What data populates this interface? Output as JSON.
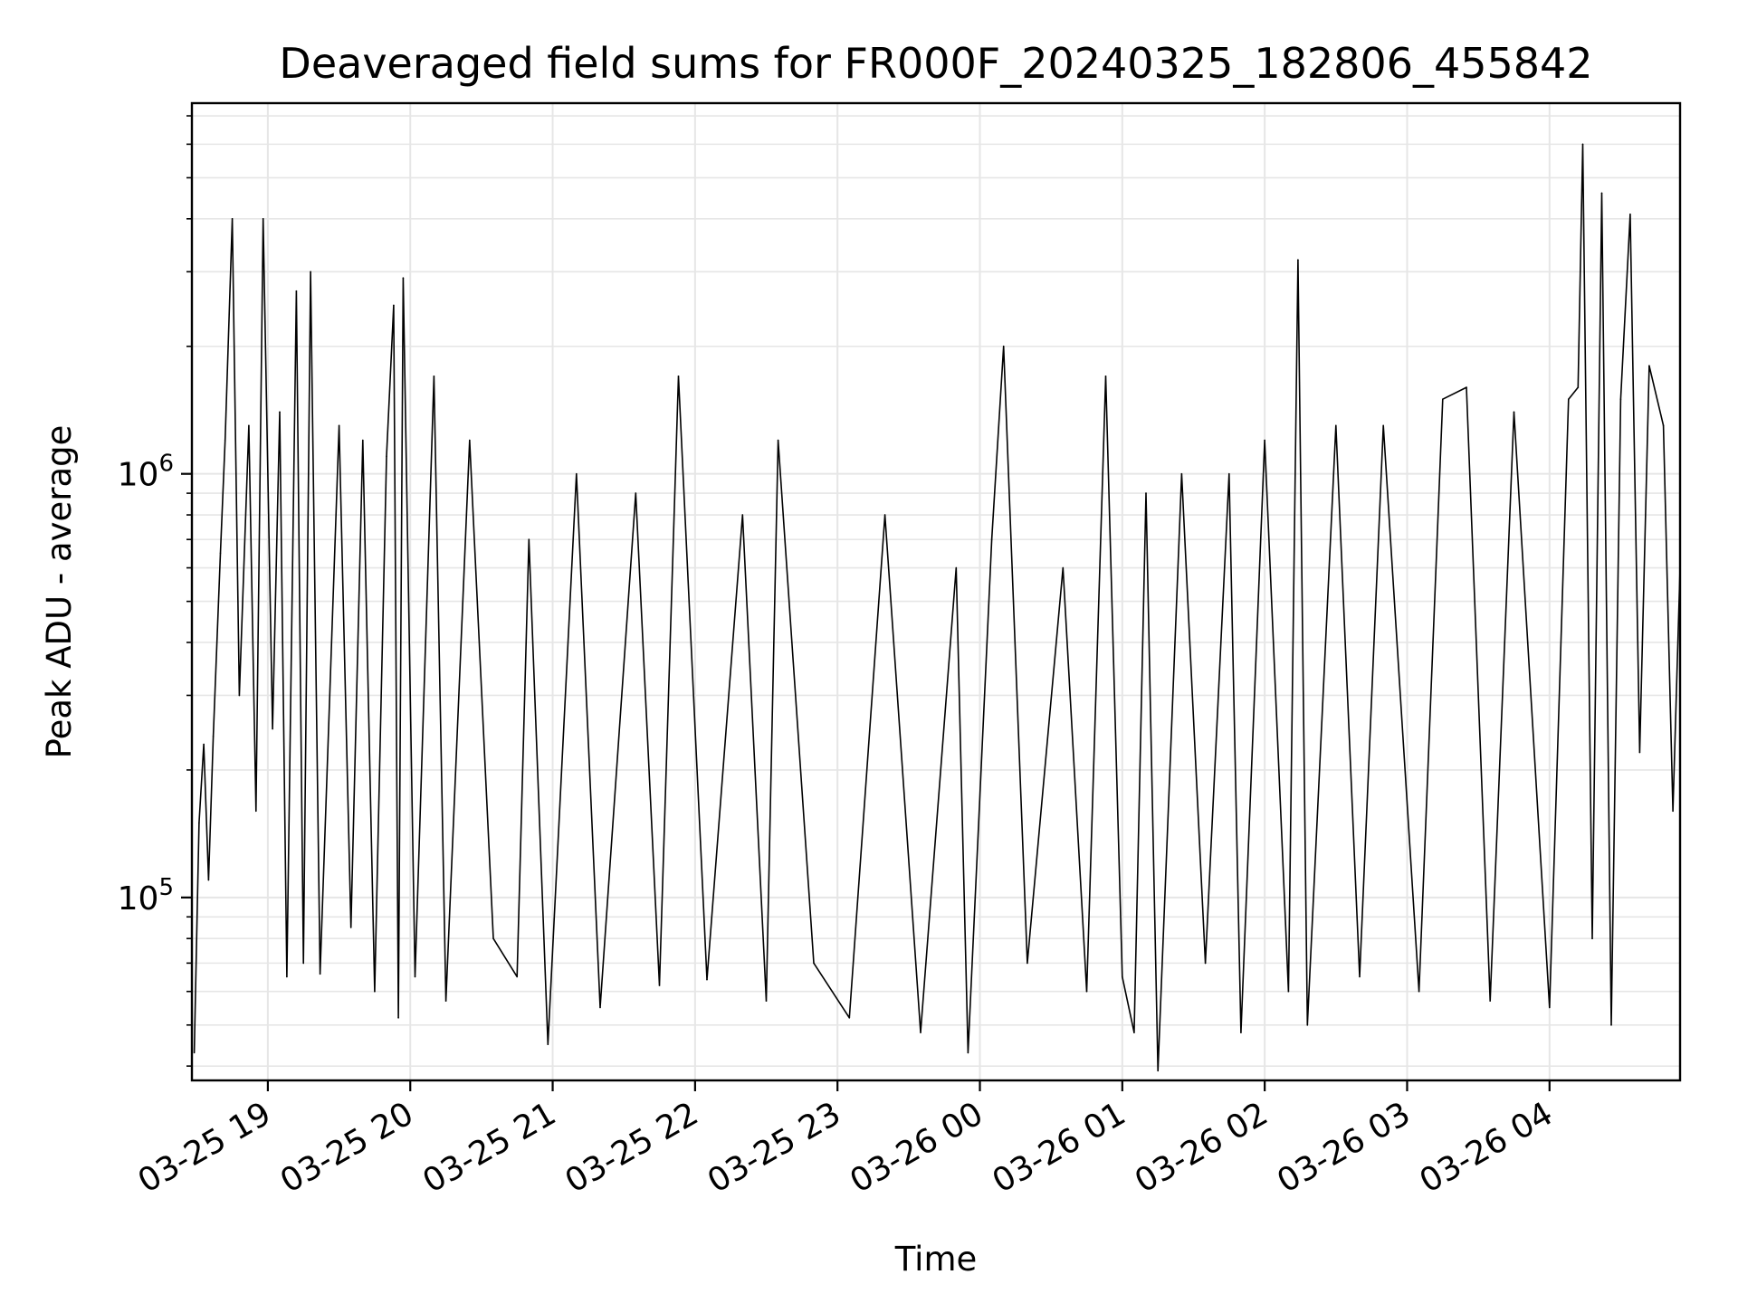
{
  "chart_data": {
    "type": "line",
    "title": "Deaveraged field sums for FR000F_20240325_182806_455842",
    "xlabel": "Time",
    "ylabel": "Peak ADU - average",
    "y_scale": "log",
    "ylim": [
      37000,
      7500000
    ],
    "xlim": [
      "2024-03-25 18:28",
      "2024-03-26 04:55"
    ],
    "grid": true,
    "line_color": "#000000",
    "grid_color": "#e6e6e6",
    "x_ticks": [
      {
        "value": "2024-03-25 19:00",
        "label": "03-25 19"
      },
      {
        "value": "2024-03-25 20:00",
        "label": "03-25 20"
      },
      {
        "value": "2024-03-25 21:00",
        "label": "03-25 21"
      },
      {
        "value": "2024-03-25 22:00",
        "label": "03-25 22"
      },
      {
        "value": "2024-03-25 23:00",
        "label": "03-25 23"
      },
      {
        "value": "2024-03-26 00:00",
        "label": "03-26 00"
      },
      {
        "value": "2024-03-26 01:00",
        "label": "03-26 01"
      },
      {
        "value": "2024-03-26 02:00",
        "label": "03-26 02"
      },
      {
        "value": "2024-03-26 03:00",
        "label": "03-26 03"
      },
      {
        "value": "2024-03-26 04:00",
        "label": "03-26 04"
      }
    ],
    "y_ticks": [
      {
        "value": 100000,
        "base": "10",
        "exp": "5"
      },
      {
        "value": 1000000,
        "base": "10",
        "exp": "6"
      }
    ],
    "series": [
      {
        "points": [
          [
            "2024-03-25 18:29",
            43000
          ],
          [
            "2024-03-25 18:31",
            150000
          ],
          [
            "2024-03-25 18:33",
            230000
          ],
          [
            "2024-03-25 18:35",
            110000
          ],
          [
            "2024-03-25 18:37",
            240000
          ],
          [
            "2024-03-25 18:40",
            650000
          ],
          [
            "2024-03-25 18:42",
            1200000
          ],
          [
            "2024-03-25 18:45",
            4000000
          ],
          [
            "2024-03-25 18:48",
            300000
          ],
          [
            "2024-03-25 18:52",
            1300000
          ],
          [
            "2024-03-25 18:55",
            160000
          ],
          [
            "2024-03-25 18:58",
            4000000
          ],
          [
            "2024-03-25 19:02",
            250000
          ],
          [
            "2024-03-25 19:05",
            1400000
          ],
          [
            "2024-03-25 19:08",
            65000
          ],
          [
            "2024-03-25 19:12",
            2700000
          ],
          [
            "2024-03-25 19:15",
            70000
          ],
          [
            "2024-03-25 19:18",
            3000000
          ],
          [
            "2024-03-25 19:22",
            66000
          ],
          [
            "2024-03-25 19:30",
            1300000
          ],
          [
            "2024-03-25 19:35",
            85000
          ],
          [
            "2024-03-25 19:40",
            1200000
          ],
          [
            "2024-03-25 19:45",
            60000
          ],
          [
            "2024-03-25 19:50",
            1100000
          ],
          [
            "2024-03-25 19:53",
            2500000
          ],
          [
            "2024-03-25 19:55",
            52000
          ],
          [
            "2024-03-25 19:57",
            2900000
          ],
          [
            "2024-03-25 20:02",
            65000
          ],
          [
            "2024-03-25 20:10",
            1700000
          ],
          [
            "2024-03-25 20:15",
            57000
          ],
          [
            "2024-03-25 20:25",
            1200000
          ],
          [
            "2024-03-25 20:35",
            80000
          ],
          [
            "2024-03-25 20:45",
            65000
          ],
          [
            "2024-03-25 20:50",
            700000
          ],
          [
            "2024-03-25 20:58",
            45000
          ],
          [
            "2024-03-25 21:10",
            1000000
          ],
          [
            "2024-03-25 21:20",
            55000
          ],
          [
            "2024-03-25 21:35",
            900000
          ],
          [
            "2024-03-25 21:45",
            62000
          ],
          [
            "2024-03-25 21:53",
            1700000
          ],
          [
            "2024-03-25 22:05",
            64000
          ],
          [
            "2024-03-25 22:20",
            800000
          ],
          [
            "2024-03-25 22:30",
            57000
          ],
          [
            "2024-03-25 22:35",
            1200000
          ],
          [
            "2024-03-25 22:50",
            70000
          ],
          [
            "2024-03-25 23:05",
            52000
          ],
          [
            "2024-03-25 23:20",
            800000
          ],
          [
            "2024-03-25 23:35",
            48000
          ],
          [
            "2024-03-25 23:50",
            600000
          ],
          [
            "2024-03-25 23:55",
            43000
          ],
          [
            "2024-03-26 00:05",
            700000
          ],
          [
            "2024-03-26 00:10",
            2000000
          ],
          [
            "2024-03-26 00:20",
            70000
          ],
          [
            "2024-03-26 00:35",
            600000
          ],
          [
            "2024-03-26 00:45",
            60000
          ],
          [
            "2024-03-26 00:53",
            1700000
          ],
          [
            "2024-03-26 01:00",
            65000
          ],
          [
            "2024-03-26 01:05",
            48000
          ],
          [
            "2024-03-26 01:10",
            900000
          ],
          [
            "2024-03-26 01:15",
            39000
          ],
          [
            "2024-03-26 01:25",
            1000000
          ],
          [
            "2024-03-26 01:35",
            70000
          ],
          [
            "2024-03-26 01:45",
            1000000
          ],
          [
            "2024-03-26 01:50",
            48000
          ],
          [
            "2024-03-26 02:00",
            1200000
          ],
          [
            "2024-03-26 02:10",
            60000
          ],
          [
            "2024-03-26 02:14",
            3200000
          ],
          [
            "2024-03-26 02:18",
            50000
          ],
          [
            "2024-03-26 02:30",
            1300000
          ],
          [
            "2024-03-26 02:40",
            65000
          ],
          [
            "2024-03-26 02:50",
            1300000
          ],
          [
            "2024-03-26 03:05",
            60000
          ],
          [
            "2024-03-26 03:15",
            1500000
          ],
          [
            "2024-03-26 03:25",
            1600000
          ],
          [
            "2024-03-26 03:35",
            57000
          ],
          [
            "2024-03-26 03:45",
            1400000
          ],
          [
            "2024-03-26 04:00",
            55000
          ],
          [
            "2024-03-26 04:08",
            1500000
          ],
          [
            "2024-03-26 04:12",
            1600000
          ],
          [
            "2024-03-26 04:14",
            6000000
          ],
          [
            "2024-03-26 04:18",
            80000
          ],
          [
            "2024-03-26 04:22",
            4600000
          ],
          [
            "2024-03-26 04:26",
            50000
          ],
          [
            "2024-03-26 04:30",
            1500000
          ],
          [
            "2024-03-26 04:34",
            4100000
          ],
          [
            "2024-03-26 04:38",
            220000
          ],
          [
            "2024-03-26 04:42",
            1800000
          ],
          [
            "2024-03-26 04:48",
            1300000
          ],
          [
            "2024-03-26 04:52",
            160000
          ],
          [
            "2024-03-26 04:55",
            600000
          ]
        ]
      }
    ]
  }
}
